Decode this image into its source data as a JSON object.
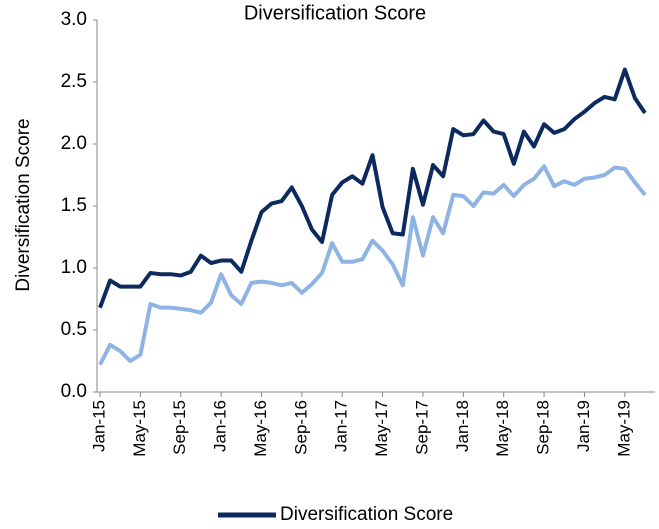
{
  "chart_data": {
    "type": "line",
    "title": "Diversification Score",
    "ylabel": "Diversification Score",
    "categories": [
      "Jan-15",
      null,
      null,
      null,
      "May-15",
      null,
      null,
      null,
      "Sep-15",
      null,
      null,
      null,
      "Jan-16",
      null,
      null,
      null,
      "May-16",
      null,
      null,
      null,
      "Sep-16",
      null,
      null,
      null,
      "Jan-17",
      null,
      null,
      null,
      "May-17",
      null,
      null,
      null,
      "Sep-17",
      null,
      null,
      null,
      "Jan-18",
      null,
      null,
      null,
      "May-18",
      null,
      null,
      null,
      "Sep-18",
      null,
      null,
      null,
      "Jan-19",
      null,
      null,
      null,
      "May-19",
      null,
      null
    ],
    "series": [
      {
        "name": "Diversification Score",
        "color": "#0d2a5e",
        "values": [
          0.68,
          0.9,
          0.85,
          0.85,
          0.85,
          0.96,
          0.95,
          0.95,
          0.94,
          0.97,
          1.1,
          1.04,
          1.06,
          1.06,
          0.97,
          1.22,
          1.45,
          1.52,
          1.54,
          1.65,
          1.5,
          1.31,
          1.21,
          1.59,
          1.69,
          1.74,
          1.68,
          1.91,
          1.49,
          1.28,
          1.27,
          1.8,
          1.51,
          1.83,
          1.74,
          2.12,
          2.07,
          2.08,
          2.19,
          2.1,
          2.08,
          1.84,
          2.1,
          1.98,
          2.16,
          2.09,
          2.12,
          2.2,
          2.26,
          2.33,
          2.38,
          2.36,
          2.6,
          2.37,
          2.25
        ]
      },
      {
        "color": "#8fb4e3",
        "values": [
          0.22,
          0.38,
          0.33,
          0.25,
          0.3,
          0.71,
          0.68,
          0.68,
          0.67,
          0.66,
          0.64,
          0.72,
          0.95,
          0.78,
          0.71,
          0.88,
          0.89,
          0.88,
          0.86,
          0.88,
          0.8,
          0.87,
          0.96,
          1.2,
          1.05,
          1.05,
          1.07,
          1.22,
          1.14,
          1.03,
          0.86,
          1.41,
          1.1,
          1.41,
          1.28,
          1.59,
          1.58,
          1.5,
          1.61,
          1.6,
          1.67,
          1.58,
          1.67,
          1.72,
          1.82,
          1.66,
          1.7,
          1.67,
          1.72,
          1.73,
          1.75,
          1.81,
          1.8,
          1.69,
          1.59
        ]
      }
    ],
    "ylim": [
      0,
      3
    ],
    "yticks": [
      {
        "value": 0,
        "label": "0.0"
      },
      0.5,
      {
        "value": 1,
        "label": "1.0"
      },
      1.5,
      {
        "value": 2,
        "label": "2.0"
      },
      2.5,
      {
        "value": 3,
        "label": "3.0"
      }
    ],
    "grid": false,
    "legend": "bottom"
  }
}
